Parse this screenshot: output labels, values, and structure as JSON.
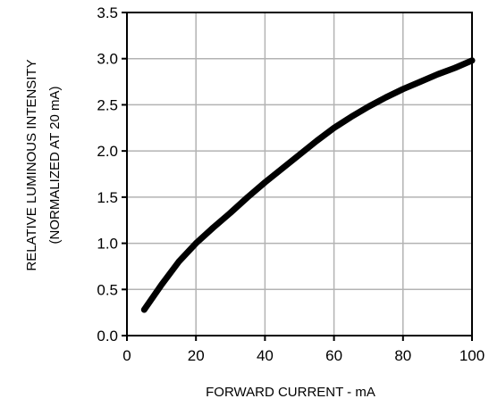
{
  "chart_data": {
    "type": "line",
    "title": "",
    "xlabel": "FORWARD CURRENT - mA",
    "ylabel_lines": [
      "RELATIVE LUMINOUS INTENSITY",
      "(NORMALIZED AT 20 mA)"
    ],
    "xlim": [
      0,
      100
    ],
    "ylim": [
      0.0,
      3.5
    ],
    "x_ticks": [
      "0",
      "20",
      "40",
      "60",
      "80",
      "100"
    ],
    "y_ticks": [
      "0.0",
      "0.5",
      "1.0",
      "1.5",
      "2.0",
      "2.5",
      "3.0",
      "3.5"
    ],
    "grid": true,
    "series": [
      {
        "x": [
          5,
          10,
          15,
          20,
          25,
          30,
          35,
          40,
          45,
          50,
          55,
          60,
          65,
          70,
          75,
          80,
          85,
          90,
          95,
          100
        ],
        "y": [
          0.28,
          0.55,
          0.8,
          1.0,
          1.17,
          1.33,
          1.5,
          1.66,
          1.81,
          1.96,
          2.11,
          2.25,
          2.37,
          2.48,
          2.58,
          2.67,
          2.75,
          2.83,
          2.9,
          2.98
        ]
      }
    ]
  }
}
